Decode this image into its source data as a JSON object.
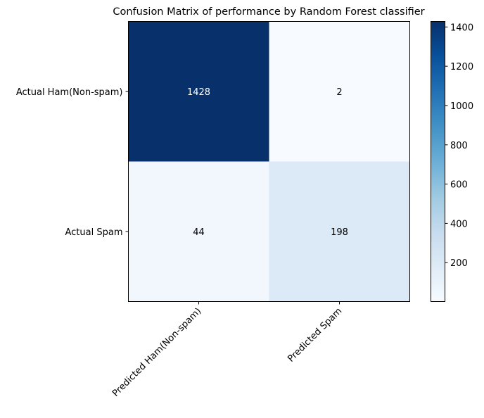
{
  "chart_data": {
    "type": "heatmap",
    "title": "Confusion Matrix of performance by Random Forest classifier",
    "rows": [
      "Actual Ham(Non-spam)",
      "Actual Spam"
    ],
    "columns": [
      "Predicted Ham(Non-spam)",
      "Predicted Spam"
    ],
    "values": [
      [
        1428,
        2
      ],
      [
        44,
        198
      ]
    ],
    "colormap": "Blues",
    "colormap_stops": [
      "#f7fbff",
      "#deebf7",
      "#c6dbef",
      "#9ecae1",
      "#6baed6",
      "#4292c6",
      "#2171b5",
      "#08519c",
      "#08306b"
    ],
    "value_range": [
      2,
      1428
    ],
    "colorbar_ticks": [
      200,
      400,
      600,
      800,
      1000,
      1200,
      1400
    ],
    "text_threshold": 714,
    "text_colors": {
      "light": "#ffffff",
      "dark": "#000000"
    },
    "xtick_rotation_deg": 45
  }
}
